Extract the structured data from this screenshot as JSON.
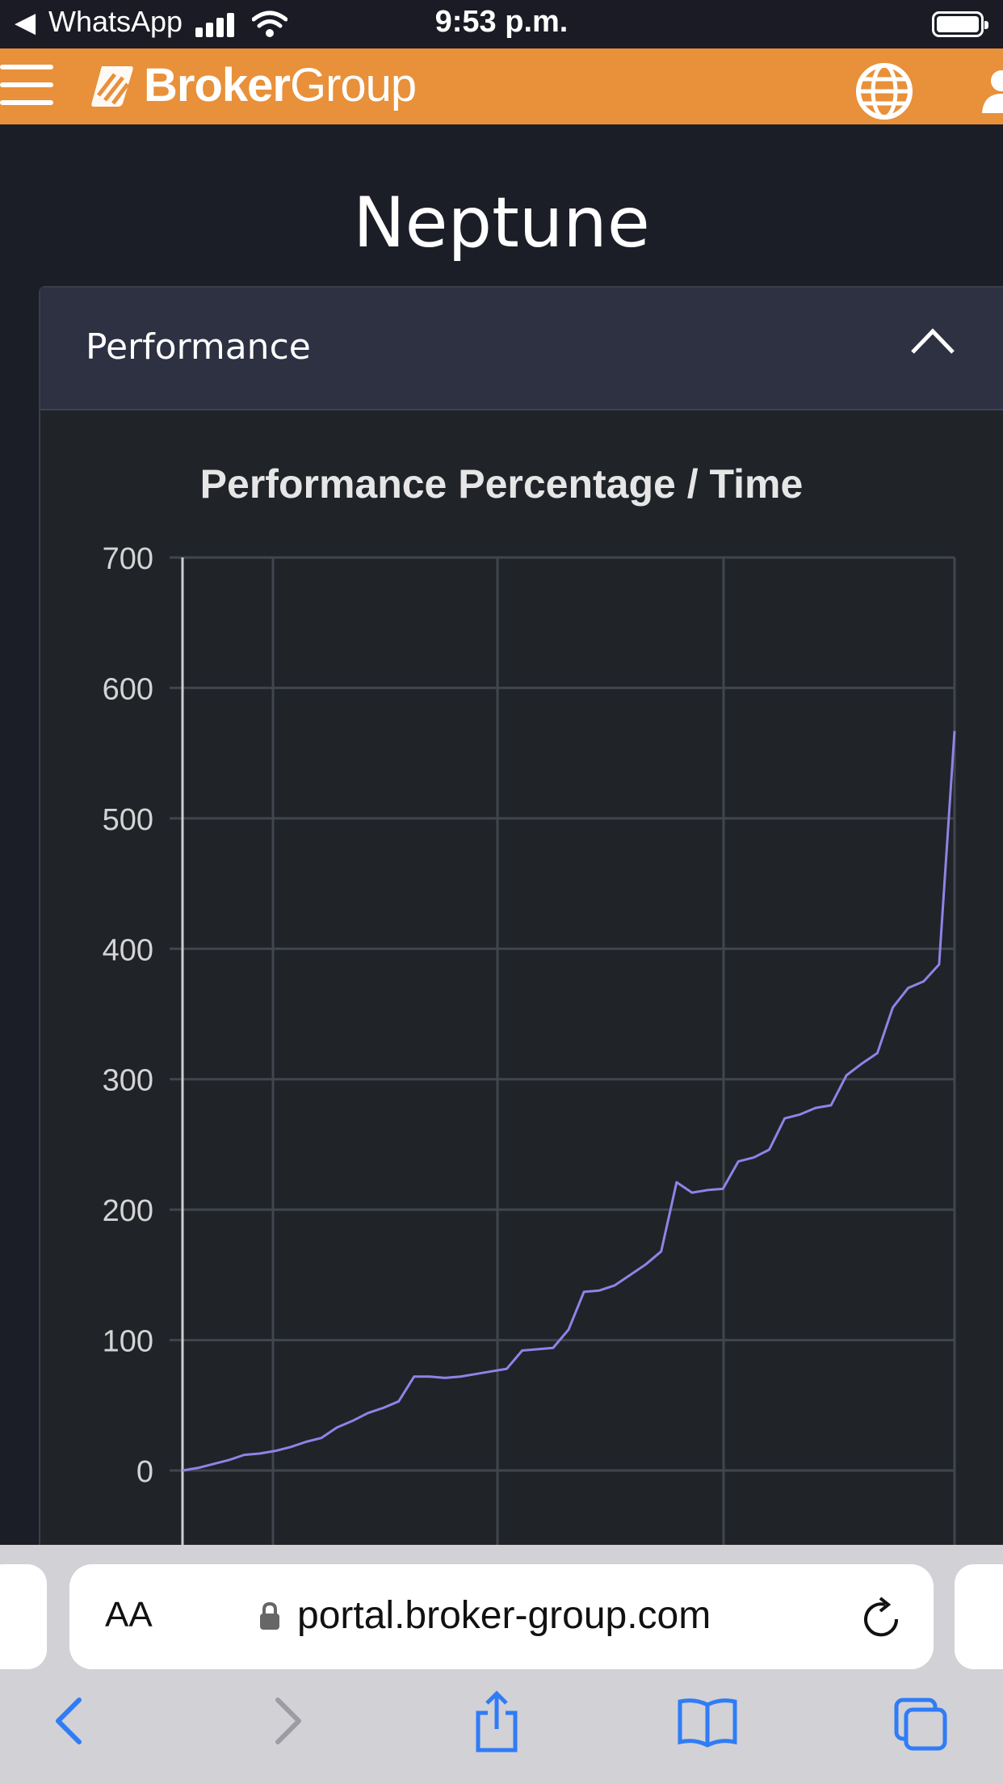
{
  "status_bar": {
    "back_app": "WhatsApp",
    "time": "9:53 p.m."
  },
  "header": {
    "brand_bold": "Broker",
    "brand_light": "Group",
    "icons": [
      "menu-icon",
      "logo-icon",
      "globe-icon",
      "user-icon"
    ]
  },
  "page": {
    "title": "Neptune"
  },
  "card": {
    "title": "Performance",
    "collapse_icon": "chevron-up-icon"
  },
  "chart_data": {
    "type": "line",
    "title": "Performance Percentage / Time",
    "ylim": [
      -50,
      700
    ],
    "y_ticks": [
      "700",
      "600",
      "500",
      "400",
      "300",
      "200",
      "100",
      "0"
    ],
    "grid": true,
    "series": [
      {
        "color": "#8f83e6",
        "x": [
          0,
          2,
          4,
          6,
          8,
          10,
          12,
          14,
          16,
          18,
          20,
          22,
          24,
          26,
          28,
          30,
          32,
          34,
          36,
          38,
          40,
          42,
          44,
          46,
          48,
          50,
          52,
          54,
          56,
          58,
          60,
          62,
          64,
          66,
          68,
          70,
          72,
          74,
          76,
          78,
          80,
          82,
          84,
          86,
          88,
          90,
          92,
          94,
          96,
          98,
          100
        ],
        "values": [
          0,
          2,
          5,
          8,
          12,
          13,
          15,
          18,
          22,
          25,
          33,
          38,
          44,
          48,
          53,
          72,
          72,
          71,
          72,
          74,
          76,
          78,
          92,
          93,
          94,
          108,
          137,
          138,
          142,
          150,
          158,
          168,
          221,
          213,
          215,
          216,
          237,
          240,
          246,
          270,
          273,
          278,
          280,
          303,
          312,
          320,
          355,
          370,
          375,
          388,
          567
        ]
      }
    ]
  },
  "safari": {
    "text_size_label": "AA",
    "url": "portal.broker-group.com",
    "toolbar_icons": [
      "back-icon",
      "forward-icon",
      "share-icon",
      "bookmarks-icon",
      "tabs-icon"
    ]
  },
  "colors": {
    "header": "#e8903a",
    "background": "#1c1e27",
    "card_header": "#2e3142",
    "line": "#8f83e6"
  }
}
